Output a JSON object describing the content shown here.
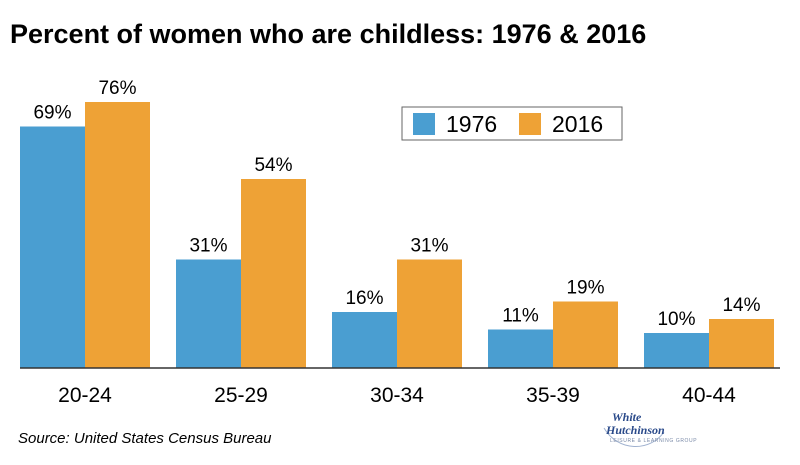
{
  "chart_data": {
    "type": "bar",
    "title": "Percent of women who are childless: 1976 & 2016",
    "categories": [
      "20-24",
      "25-29",
      "30-34",
      "35-39",
      "40-44"
    ],
    "series": [
      {
        "name": "1976",
        "values": [
          69,
          31,
          16,
          11,
          10
        ],
        "labels": [
          "69%",
          "31%",
          "16%",
          "11%",
          "10%"
        ],
        "color": "#4a9ed1"
      },
      {
        "name": "2016",
        "values": [
          76,
          54,
          31,
          19,
          14
        ],
        "labels": [
          "76%",
          "54%",
          "31%",
          "19%",
          "14%"
        ],
        "color": "#eea236"
      }
    ],
    "ylim": [
      0,
      100
    ],
    "grid": false,
    "legend_position": "top-right"
  },
  "source": "Source: United States Census Bureau",
  "logo": {
    "line1": "White",
    "line2": "Hutchinson",
    "tagline": "LEISURE & LEARNING GROUP"
  }
}
